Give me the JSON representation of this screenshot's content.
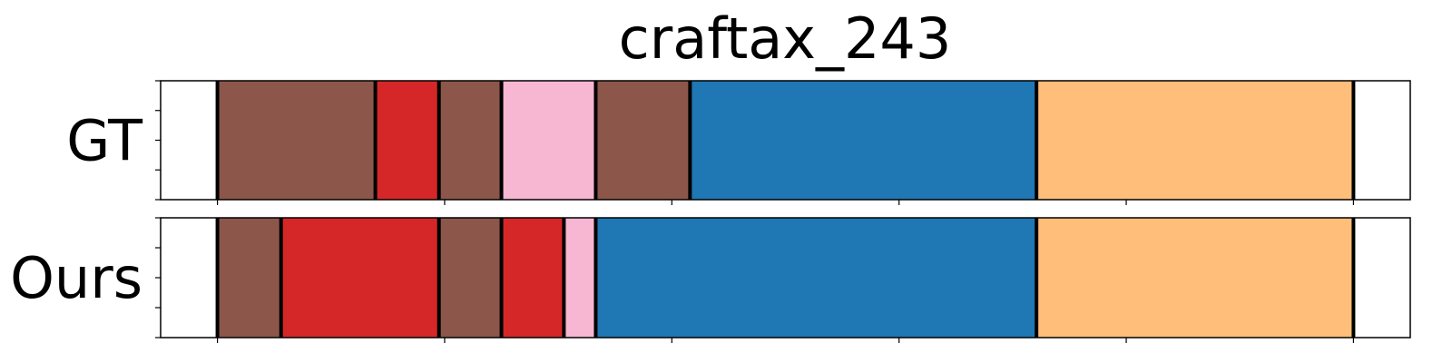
{
  "chart_data": {
    "type": "segmentation-timeline",
    "title": "craftax_243",
    "xlim": [
      0,
      1100
    ],
    "x_ticks": [
      50,
      250,
      450,
      650,
      850,
      1050
    ],
    "tick_labels_shown": false,
    "colors": {
      "brown": "#8c564b",
      "red": "#d62728",
      "pink": "#f7b6d2",
      "blue": "#1f77b4",
      "orange": "#ffbe7a",
      "boundary": "#000000"
    },
    "rows": [
      {
        "label": "GT",
        "segments": [
          {
            "start": 50,
            "end": 189,
            "color": "brown"
          },
          {
            "start": 189,
            "end": 245,
            "color": "red"
          },
          {
            "start": 245,
            "end": 300,
            "color": "brown"
          },
          {
            "start": 300,
            "end": 383,
            "color": "pink"
          },
          {
            "start": 383,
            "end": 466,
            "color": "brown"
          },
          {
            "start": 466,
            "end": 771,
            "color": "blue"
          },
          {
            "start": 771,
            "end": 1050,
            "color": "orange"
          }
        ]
      },
      {
        "label": "Ours",
        "segments": [
          {
            "start": 50,
            "end": 106,
            "color": "brown"
          },
          {
            "start": 106,
            "end": 245,
            "color": "red"
          },
          {
            "start": 245,
            "end": 300,
            "color": "brown"
          },
          {
            "start": 300,
            "end": 355,
            "color": "red"
          },
          {
            "start": 355,
            "end": 383,
            "color": "pink"
          },
          {
            "start": 383,
            "end": 771,
            "color": "blue"
          },
          {
            "start": 771,
            "end": 1050,
            "color": "orange"
          }
        ]
      }
    ]
  }
}
